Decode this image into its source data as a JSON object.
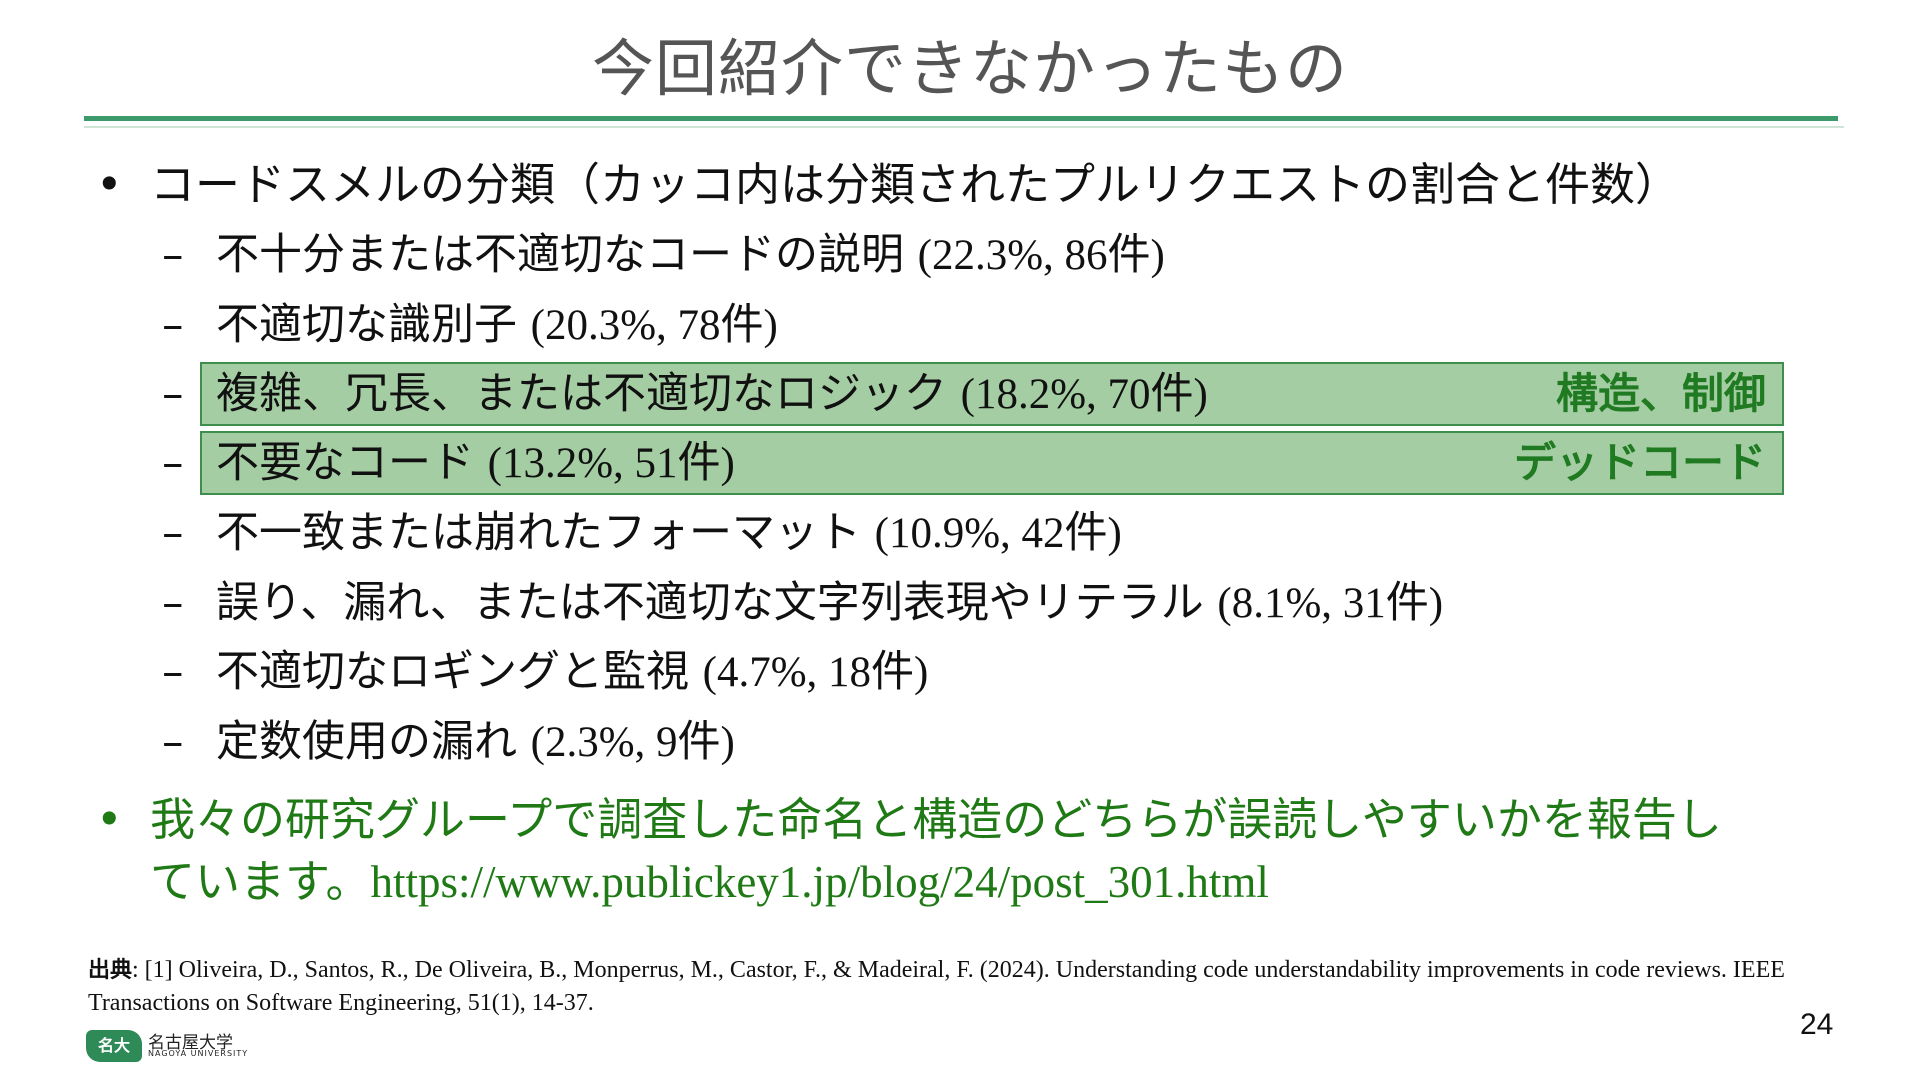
{
  "slide": {
    "title": "今回紹介できなかったもの",
    "bullet1": "コードスメルの分類（カッコ内は分類されたプルリクエストの割合と件数）",
    "dash": "–",
    "bullet_dot": "•",
    "items": [
      {
        "text": "不十分または不適切なコードの説明 ",
        "stat": "(22.3%, 86件)"
      },
      {
        "text": "不適切な識別子 ",
        "stat": "(20.3%, 78件)"
      },
      {
        "text": "複雑、冗長、または不適切なロジック ",
        "stat": "(18.2%, 70件)",
        "tag": "構造、制御"
      },
      {
        "text": "不要なコード ",
        "stat": "(13.2%, 51件)",
        "tag": "デッドコード"
      },
      {
        "text": "不一致または崩れたフォーマット ",
        "stat": "(10.9%, 42件)"
      },
      {
        "text": "誤り、漏れ、または不適切な文字列表現やリテラル ",
        "stat": "(8.1%, 31件)"
      },
      {
        "text": "不適切なロギングと監視 ",
        "stat": "(4.7%, 18件)"
      },
      {
        "text": "定数使用の漏れ ",
        "stat": "(2.3%, 9件)"
      }
    ],
    "bullet2_line1": "我々の研究グループで調査した命名と構造のどちらが誤読しやすいかを報告し",
    "bullet2_line2_prefix": "ています。",
    "bullet2_link": "https://www.publickey1.jp/blog/24/post_301.html",
    "citation_label": "出典",
    "citation_text": ": [1] Oliveira, D., Santos, R., De Oliveira, B., Monperrus, M., Castor, F., & Madeiral, F. (2024). Understanding code understandability improvements in code reviews. IEEE Transactions on Software Engineering, 51(1), 14-37.",
    "page_number": "24",
    "logo_mark": "名大",
    "logo_jp": "名古屋大学",
    "logo_en": "NAGOYA UNIVERSITY"
  },
  "colors": {
    "accent_rule": "#3d9a6a",
    "highlight_fill": "#a5cda3",
    "highlight_border": "#3e8f4b",
    "green_text": "#1f7a16"
  }
}
